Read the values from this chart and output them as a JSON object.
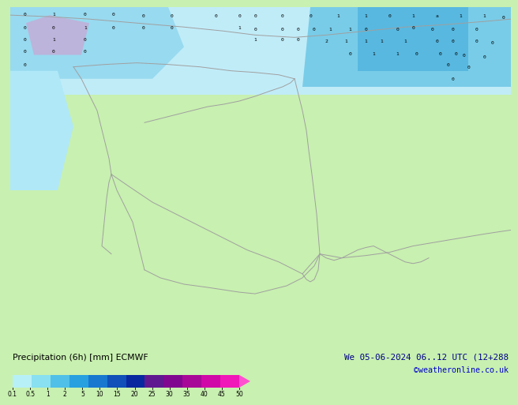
{
  "title_left": "Precipitation (6h) [mm] ECMWF",
  "title_right": "We 05-06-2024 06..12 UTC (12+288",
  "subtitle_right": "©weatheronline.co.uk",
  "land_color": "#c8f0b0",
  "sea_color": "#e8f8e8",
  "precip_light": "#b8ecf8",
  "precip_mid": "#88d8f0",
  "precip_blue": "#60c0e8",
  "precip_dark": "#3898d0",
  "border_color": "#a0a0a0",
  "cmap_colors": [
    "#b8f0f8",
    "#88e0f0",
    "#50c0e8",
    "#28a0e0",
    "#1878d0",
    "#1050b8",
    "#0828a0",
    "#601890",
    "#800890",
    "#a80898",
    "#d008a8",
    "#f018b8",
    "#ff50d0"
  ],
  "tick_labels": [
    "0.1",
    "0.5",
    "1",
    "2",
    "5",
    "10",
    "15",
    "20",
    "25",
    "30",
    "35",
    "40",
    "45",
    "50"
  ],
  "fig_bg": "#c8f0b0"
}
